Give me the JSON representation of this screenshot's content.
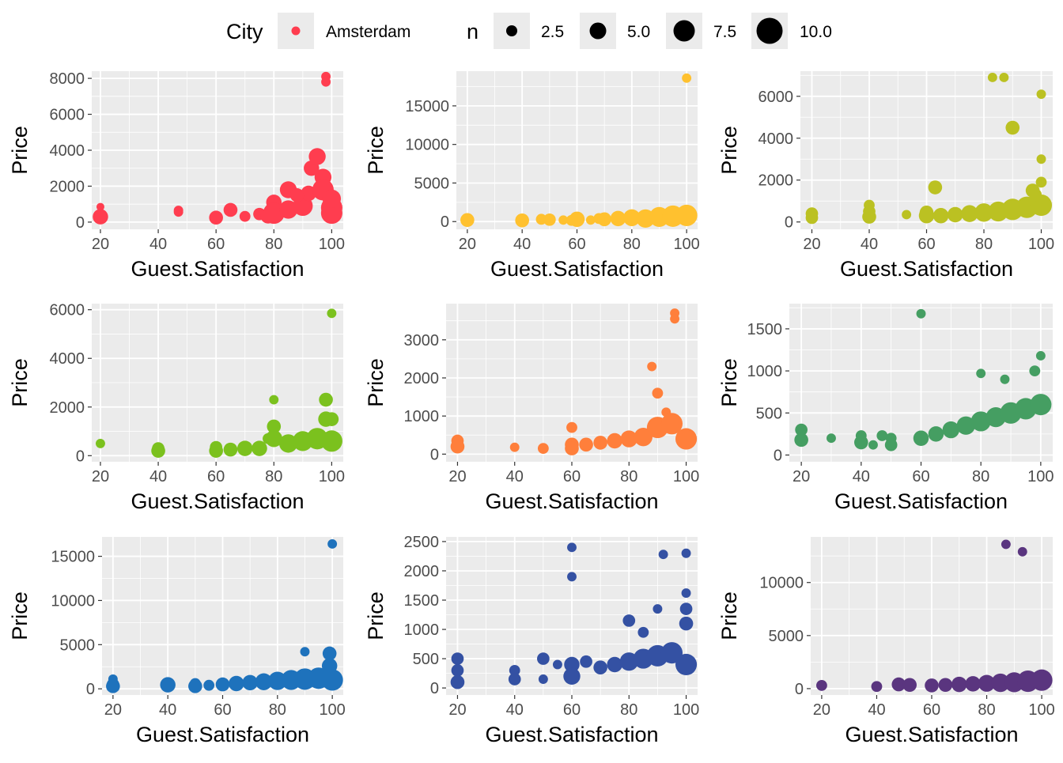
{
  "legend": {
    "city_title": "City",
    "city_entries": [
      {
        "label": "Amsterdam",
        "color": "#FF3D4F"
      }
    ],
    "size_title": "n",
    "size_entries": [
      {
        "label": "2.5",
        "value": 2.5
      },
      {
        "label": "5.0",
        "value": 5.0
      },
      {
        "label": "7.5",
        "value": 7.5
      },
      {
        "label": "10.0",
        "value": 10.0
      }
    ]
  },
  "chart_data": [
    {
      "type": "scatter",
      "color": "#FF3D4F",
      "xlabel": "Guest.Satisfaction",
      "ylabel": "Price",
      "xlim": [
        17,
        104
      ],
      "ylim": [
        -400,
        8400
      ],
      "xticks": [
        20,
        40,
        60,
        80,
        100
      ],
      "yticks": [
        0,
        2000,
        4000,
        6000,
        8000
      ],
      "points": [
        [
          20,
          850,
          1
        ],
        [
          20,
          300,
          6
        ],
        [
          47,
          650,
          2
        ],
        [
          47,
          560,
          2
        ],
        [
          60,
          250,
          5
        ],
        [
          60,
          180,
          3
        ],
        [
          65,
          680,
          5
        ],
        [
          70,
          320,
          3
        ],
        [
          75,
          450,
          4
        ],
        [
          78,
          350,
          6
        ],
        [
          80,
          1100,
          6
        ],
        [
          80,
          500,
          10
        ],
        [
          85,
          1800,
          7
        ],
        [
          85,
          700,
          8
        ],
        [
          90,
          900,
          9
        ],
        [
          92,
          1600,
          6
        ],
        [
          93,
          3000,
          6
        ],
        [
          95,
          3650,
          7
        ],
        [
          97,
          2500,
          7
        ],
        [
          97,
          1800,
          10
        ],
        [
          98,
          8100,
          2
        ],
        [
          98,
          7800,
          2
        ],
        [
          100,
          800,
          10
        ],
        [
          100,
          500,
          10
        ],
        [
          100,
          1300,
          8
        ],
        [
          88,
          1500,
          5
        ]
      ]
    },
    {
      "type": "scatter",
      "color": "#FFC12F",
      "xlabel": "Guest.Satisfaction",
      "ylabel": "Price",
      "xlim": [
        16,
        104
      ],
      "ylim": [
        -1000,
        19500
      ],
      "xticks": [
        20,
        40,
        60,
        80,
        100
      ],
      "yticks": [
        0,
        5000,
        10000,
        15000
      ],
      "points": [
        [
          20,
          200,
          5
        ],
        [
          40,
          200,
          4
        ],
        [
          40,
          150,
          5
        ],
        [
          47,
          300,
          3
        ],
        [
          50,
          250,
          4
        ],
        [
          55,
          200,
          2
        ],
        [
          58,
          150,
          3
        ],
        [
          60,
          300,
          6
        ],
        [
          65,
          200,
          2
        ],
        [
          68,
          400,
          3
        ],
        [
          70,
          300,
          5
        ],
        [
          75,
          400,
          6
        ],
        [
          80,
          500,
          7
        ],
        [
          85,
          400,
          8
        ],
        [
          90,
          600,
          9
        ],
        [
          95,
          700,
          10
        ],
        [
          100,
          800,
          10
        ],
        [
          100,
          18600,
          2
        ]
      ]
    },
    {
      "type": "scatter",
      "color": "#BBC122",
      "xlabel": "Guest.Satisfaction",
      "ylabel": "Price",
      "xlim": [
        16,
        104
      ],
      "ylim": [
        -350,
        7200
      ],
      "xticks": [
        20,
        40,
        60,
        80,
        100
      ],
      "yticks": [
        0,
        2000,
        4000,
        6000
      ],
      "points": [
        [
          20,
          400,
          4
        ],
        [
          20,
          200,
          4
        ],
        [
          40,
          800,
          3
        ],
        [
          40,
          500,
          4
        ],
        [
          40,
          250,
          5
        ],
        [
          53,
          350,
          2
        ],
        [
          60,
          450,
          5
        ],
        [
          60,
          300,
          6
        ],
        [
          63,
          1650,
          5
        ],
        [
          65,
          300,
          6
        ],
        [
          70,
          350,
          6
        ],
        [
          75,
          400,
          7
        ],
        [
          80,
          450,
          8
        ],
        [
          85,
          500,
          9
        ],
        [
          90,
          600,
          10
        ],
        [
          95,
          700,
          10
        ],
        [
          100,
          800,
          10
        ],
        [
          83,
          6900,
          2
        ],
        [
          87,
          6900,
          2
        ],
        [
          90,
          4500,
          5
        ],
        [
          100,
          6100,
          2
        ],
        [
          100,
          3000,
          2
        ],
        [
          100,
          1900,
          3
        ],
        [
          97,
          1500,
          5
        ],
        [
          98,
          1300,
          4
        ]
      ]
    },
    {
      "type": "scatter",
      "color": "#7BC11E",
      "xlabel": "Guest.Satisfaction",
      "ylabel": "Price",
      "xlim": [
        17,
        104
      ],
      "ylim": [
        -250,
        6250
      ],
      "xticks": [
        20,
        40,
        60,
        80,
        100
      ],
      "yticks": [
        0,
        2000,
        4000,
        6000
      ],
      "points": [
        [
          20,
          500,
          2
        ],
        [
          40,
          300,
          4
        ],
        [
          40,
          200,
          5
        ],
        [
          60,
          350,
          4
        ],
        [
          60,
          200,
          5
        ],
        [
          65,
          250,
          5
        ],
        [
          70,
          300,
          6
        ],
        [
          75,
          300,
          6
        ],
        [
          78,
          700,
          3
        ],
        [
          80,
          2300,
          2
        ],
        [
          80,
          1200,
          5
        ],
        [
          80,
          700,
          7
        ],
        [
          85,
          500,
          8
        ],
        [
          90,
          600,
          9
        ],
        [
          95,
          700,
          10
        ],
        [
          98,
          2300,
          5
        ],
        [
          98,
          1500,
          6
        ],
        [
          100,
          1500,
          5
        ],
        [
          100,
          5850,
          2
        ],
        [
          100,
          600,
          10
        ]
      ]
    },
    {
      "type": "scatter",
      "color": "#FF7F3B",
      "xlabel": "Guest.Satisfaction",
      "ylabel": "Price",
      "xlim": [
        16,
        104
      ],
      "ylim": [
        -200,
        3950
      ],
      "xticks": [
        20,
        40,
        60,
        80,
        100
      ],
      "yticks": [
        0,
        1000,
        2000,
        3000
      ],
      "points": [
        [
          20,
          350,
          4
        ],
        [
          20,
          200,
          5
        ],
        [
          40,
          180,
          2
        ],
        [
          50,
          150,
          3
        ],
        [
          60,
          700,
          3
        ],
        [
          60,
          250,
          5
        ],
        [
          60,
          150,
          5
        ],
        [
          65,
          250,
          5
        ],
        [
          70,
          300,
          5
        ],
        [
          75,
          350,
          6
        ],
        [
          80,
          400,
          7
        ],
        [
          85,
          450,
          8
        ],
        [
          88,
          2300,
          2
        ],
        [
          90,
          1600,
          3
        ],
        [
          90,
          700,
          10
        ],
        [
          93,
          1100,
          2
        ],
        [
          95,
          800,
          10
        ],
        [
          96,
          3700,
          2
        ],
        [
          96,
          3550,
          2
        ],
        [
          100,
          400,
          10
        ]
      ]
    },
    {
      "type": "scatter",
      "color": "#459E62",
      "xlabel": "Guest.Satisfaction",
      "ylabel": "Price",
      "xlim": [
        16,
        104
      ],
      "ylim": [
        -80,
        1800
      ],
      "xticks": [
        20,
        40,
        60,
        80,
        100
      ],
      "yticks": [
        0,
        500,
        1000,
        1500
      ],
      "points": [
        [
          20,
          300,
          4
        ],
        [
          20,
          180,
          5
        ],
        [
          30,
          200,
          2
        ],
        [
          40,
          230,
          3
        ],
        [
          40,
          150,
          5
        ],
        [
          44,
          120,
          2
        ],
        [
          47,
          230,
          3
        ],
        [
          50,
          200,
          3
        ],
        [
          50,
          120,
          4
        ],
        [
          60,
          1680,
          2
        ],
        [
          60,
          200,
          6
        ],
        [
          65,
          250,
          6
        ],
        [
          70,
          300,
          7
        ],
        [
          75,
          350,
          8
        ],
        [
          80,
          970,
          2
        ],
        [
          80,
          400,
          9
        ],
        [
          85,
          450,
          9
        ],
        [
          88,
          900,
          2
        ],
        [
          90,
          500,
          10
        ],
        [
          95,
          550,
          10
        ],
        [
          100,
          1180,
          2
        ],
        [
          100,
          600,
          10
        ],
        [
          98,
          1000,
          3
        ]
      ]
    },
    {
      "type": "scatter",
      "color": "#1E72BC",
      "xlabel": "Guest.Satisfaction",
      "ylabel": "Price",
      "xlim": [
        16,
        104
      ],
      "ylim": [
        -700,
        17200
      ],
      "xticks": [
        20,
        40,
        60,
        80,
        100
      ],
      "yticks": [
        0,
        5000,
        10000,
        15000
      ],
      "points": [
        [
          20,
          1100,
          2
        ],
        [
          20,
          500,
          4
        ],
        [
          20,
          300,
          5
        ],
        [
          40,
          450,
          6
        ],
        [
          50,
          600,
          3
        ],
        [
          50,
          300,
          5
        ],
        [
          55,
          400,
          3
        ],
        [
          60,
          500,
          5
        ],
        [
          65,
          600,
          6
        ],
        [
          70,
          700,
          6
        ],
        [
          75,
          800,
          7
        ],
        [
          80,
          900,
          8
        ],
        [
          85,
          1000,
          9
        ],
        [
          90,
          4200,
          2
        ],
        [
          90,
          1100,
          10
        ],
        [
          95,
          1200,
          10
        ],
        [
          99,
          4000,
          5
        ],
        [
          99,
          2600,
          6
        ],
        [
          100,
          16400,
          2
        ],
        [
          100,
          1000,
          10
        ]
      ]
    },
    {
      "type": "scatter",
      "color": "#3451A3",
      "xlabel": "Guest.Satisfaction",
      "ylabel": "Price",
      "xlim": [
        16,
        104
      ],
      "ylim": [
        -120,
        2580
      ],
      "xticks": [
        20,
        40,
        60,
        80,
        100
      ],
      "yticks": [
        0,
        500,
        1000,
        1500,
        2000,
        2500
      ],
      "points": [
        [
          20,
          500,
          4
        ],
        [
          20,
          300,
          4
        ],
        [
          20,
          100,
          5
        ],
        [
          40,
          300,
          3
        ],
        [
          40,
          150,
          4
        ],
        [
          50,
          500,
          4
        ],
        [
          50,
          150,
          2
        ],
        [
          55,
          400,
          2
        ],
        [
          60,
          2400,
          2
        ],
        [
          60,
          1900,
          2
        ],
        [
          60,
          400,
          6
        ],
        [
          60,
          200,
          7
        ],
        [
          65,
          450,
          4
        ],
        [
          70,
          350,
          5
        ],
        [
          75,
          400,
          6
        ],
        [
          80,
          1150,
          4
        ],
        [
          80,
          450,
          8
        ],
        [
          85,
          950,
          3
        ],
        [
          85,
          500,
          9
        ],
        [
          90,
          1350,
          2
        ],
        [
          90,
          550,
          10
        ],
        [
          92,
          2280,
          2
        ],
        [
          95,
          600,
          10
        ],
        [
          100,
          2300,
          2
        ],
        [
          100,
          1620,
          2
        ],
        [
          100,
          1350,
          4
        ],
        [
          100,
          1100,
          5
        ],
        [
          100,
          400,
          10
        ]
      ]
    },
    {
      "type": "scatter",
      "color": "#5A357F",
      "xlabel": "Guest.Satisfaction",
      "ylabel": "Price",
      "xlim": [
        16,
        104
      ],
      "ylim": [
        -600,
        14300
      ],
      "xticks": [
        20,
        40,
        60,
        80,
        100
      ],
      "yticks": [
        0,
        5000,
        10000
      ],
      "points": [
        [
          20,
          300,
          3
        ],
        [
          40,
          200,
          3
        ],
        [
          48,
          400,
          5
        ],
        [
          52,
          350,
          5
        ],
        [
          60,
          300,
          5
        ],
        [
          65,
          350,
          5
        ],
        [
          70,
          400,
          6
        ],
        [
          75,
          450,
          6
        ],
        [
          80,
          500,
          7
        ],
        [
          85,
          550,
          8
        ],
        [
          87,
          13600,
          2
        ],
        [
          90,
          600,
          9
        ],
        [
          93,
          12900,
          2
        ],
        [
          95,
          700,
          10
        ],
        [
          100,
          800,
          10
        ]
      ]
    }
  ]
}
